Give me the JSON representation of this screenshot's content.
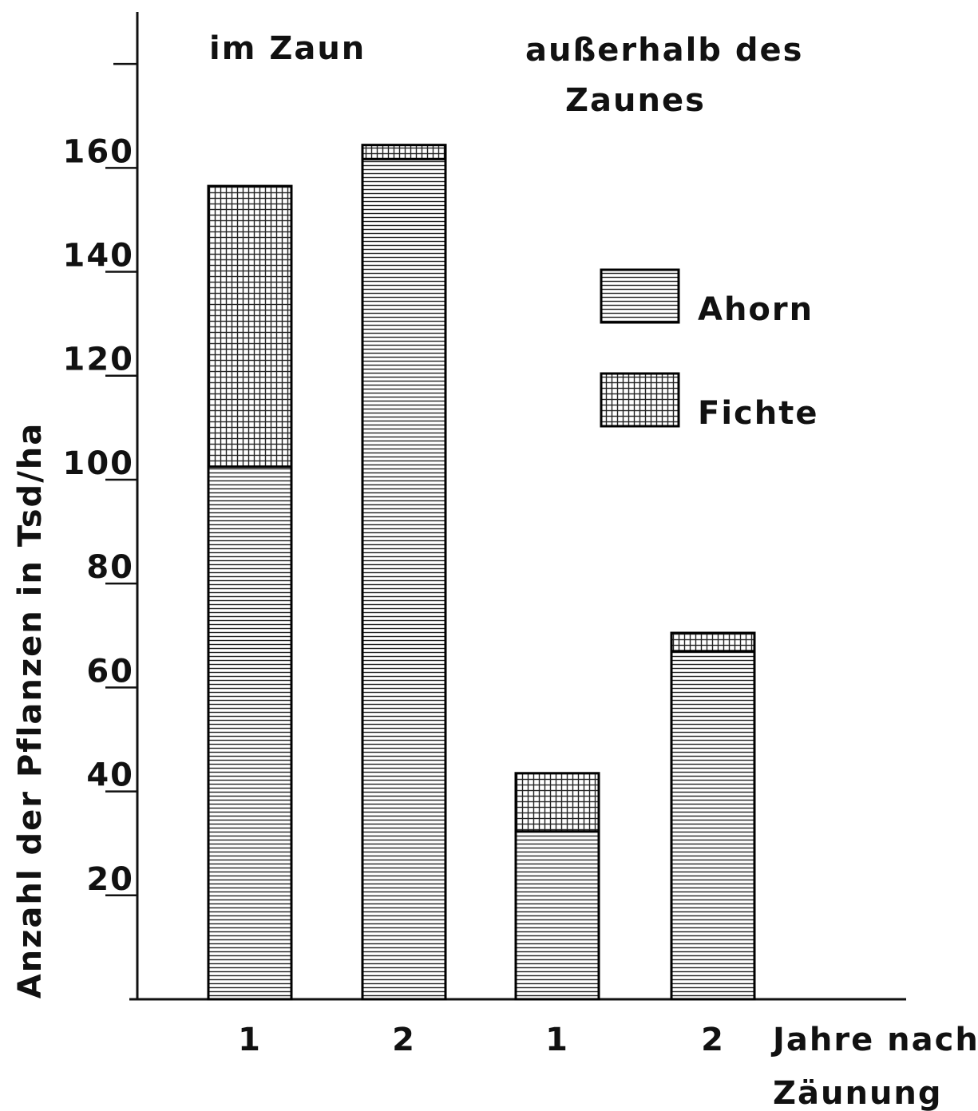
{
  "chart_data": {
    "type": "stacked_bar",
    "y_label": "Anzahl der Pflanzen in Tsd/ha",
    "x_label": [
      "Jahre nach",
      "Zäunung"
    ],
    "annotations": [
      {
        "lines": [
          "im Zaun"
        ]
      },
      {
        "lines": [
          "außerhalb des",
          "Zaunes"
        ]
      }
    ],
    "categories": [
      "1",
      "2",
      "1",
      "2"
    ],
    "series": [
      {
        "name": "Ahorn",
        "color": "#000000",
        "pattern": "horizontal",
        "values": [
          102.5,
          161.7,
          32.3,
          67
        ]
      },
      {
        "name": "Fichte",
        "color": "#000000",
        "pattern": "grid",
        "values": [
          54,
          2.7,
          11.2,
          3.5
        ]
      }
    ],
    "ylim": [
      0,
      190
    ],
    "yticks": [
      20,
      40,
      60,
      80,
      100,
      120,
      140,
      160
    ],
    "unlabeled_yticks": [
      180
    ],
    "grid": false
  }
}
